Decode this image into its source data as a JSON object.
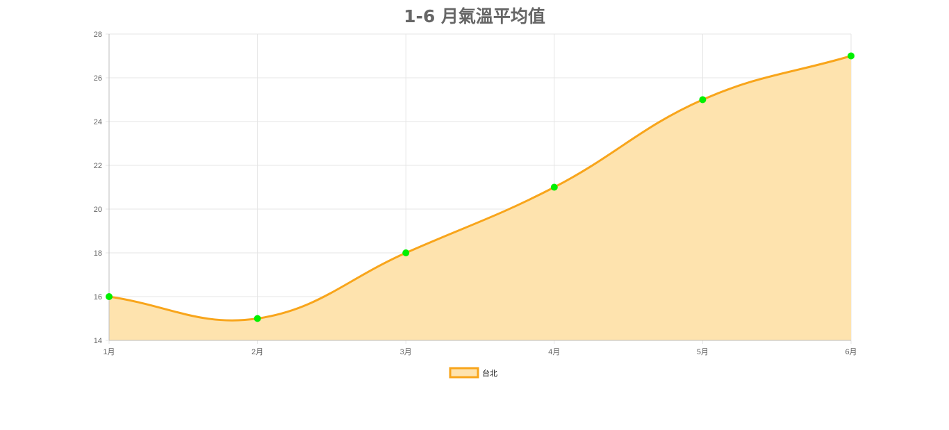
{
  "chart_data": {
    "type": "area",
    "title": "1-6 月氣溫平均值",
    "categories": [
      "1月",
      "2月",
      "3月",
      "4月",
      "5月",
      "6月"
    ],
    "series": [
      {
        "name": "台北",
        "values": [
          16,
          15,
          18,
          21,
          25,
          27
        ],
        "line_color": "#f8a51b",
        "fill_color": "#fee3ae",
        "point_color": "#00f000"
      }
    ],
    "ylim": [
      14,
      28
    ],
    "y_ticks": [
      14,
      16,
      18,
      20,
      22,
      24,
      26,
      28
    ],
    "grid": true,
    "legend_position": "bottom"
  },
  "colors": {
    "grid": "#e5e5e5",
    "axis": "#bdbdbd",
    "tick_text": "#666666",
    "title_text": "#666666"
  }
}
